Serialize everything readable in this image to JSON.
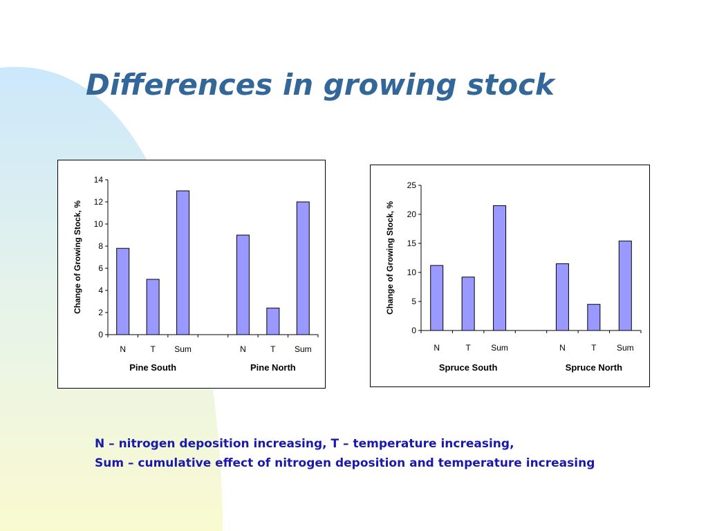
{
  "page": {
    "title": "Differences in growing stock",
    "notes": [
      "N – nitrogen deposition increasing, T – temperature increasing,",
      "Sum – cumulative effect of nitrogen deposition and temperature increasing"
    ]
  },
  "colors": {
    "title": "#336699",
    "bar_fill": "#9999ff",
    "note_text": "#1a1aaa",
    "background_blob_top": "#cce8fb",
    "background_blob_bottom": "#fafad0"
  },
  "chart_data": [
    {
      "type": "bar",
      "ylabel": "Change of Growing Stock, %",
      "ylim": [
        0,
        14
      ],
      "yticks": [
        0,
        2,
        4,
        6,
        8,
        10,
        12,
        14
      ],
      "groups": [
        {
          "label": "Pine South",
          "categories": [
            "N",
            "T",
            "Sum"
          ],
          "values": [
            7.8,
            5.0,
            13.0
          ]
        },
        {
          "label": "Pine North",
          "categories": [
            "N",
            "T",
            "Sum"
          ],
          "values": [
            9.0,
            2.4,
            12.0
          ]
        }
      ],
      "grid": false
    },
    {
      "type": "bar",
      "ylabel": "Change of Growing Stock, %",
      "ylim": [
        0,
        25
      ],
      "yticks": [
        0,
        5,
        10,
        15,
        20,
        25
      ],
      "groups": [
        {
          "label": "Spruce South",
          "categories": [
            "N",
            "T",
            "Sum"
          ],
          "values": [
            11.2,
            9.2,
            21.5
          ]
        },
        {
          "label": "Spruce North",
          "categories": [
            "N",
            "T",
            "Sum"
          ],
          "values": [
            11.5,
            4.5,
            15.4
          ]
        }
      ],
      "grid": false
    }
  ]
}
